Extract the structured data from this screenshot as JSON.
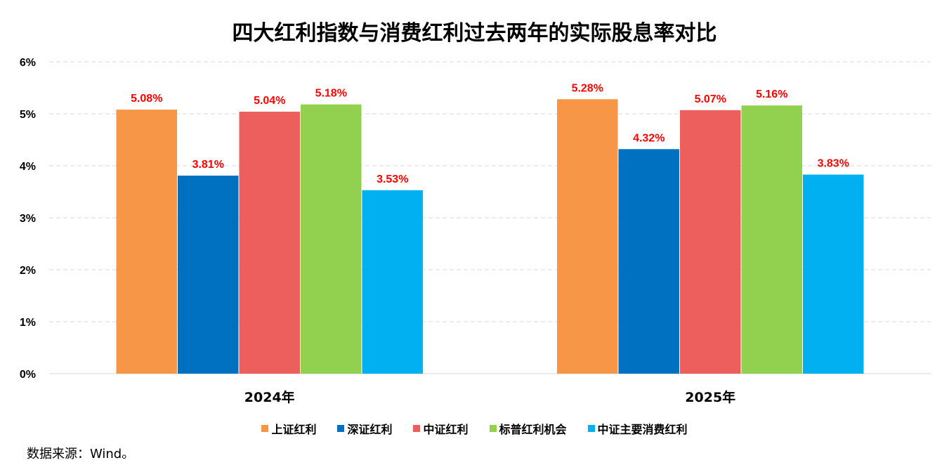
{
  "chart_data": {
    "type": "bar",
    "title": "四大红利指数与消费红利过去两年的实际股息率对比",
    "categories": [
      "2024年",
      "2025年"
    ],
    "series": [
      {
        "name": "上证红利",
        "color": "#F79646",
        "values": [
          5.08,
          5.28
        ],
        "labels": [
          "5.08%",
          "5.28%"
        ]
      },
      {
        "name": "深证红利",
        "color": "#0070C0",
        "values": [
          3.81,
          4.32
        ],
        "labels": [
          "3.81%",
          "4.32%"
        ]
      },
      {
        "name": "中证红利",
        "color": "#EC5F5C",
        "values": [
          5.04,
          5.07
        ],
        "labels": [
          "5.04%",
          "5.07%"
        ]
      },
      {
        "name": "标普红利机会",
        "color": "#92D050",
        "values": [
          5.18,
          5.16
        ],
        "labels": [
          "5.18%",
          "5.16%"
        ]
      },
      {
        "name": "中证主要消费红利",
        "color": "#00B0F0",
        "values": [
          3.53,
          3.83
        ],
        "labels": [
          "3.53%",
          "3.83%"
        ]
      }
    ],
    "yticks": [
      "0%",
      "1%",
      "2%",
      "3%",
      "4%",
      "5%",
      "6%"
    ],
    "ylim": [
      0,
      6
    ],
    "xlabel": "",
    "ylabel": "",
    "grid": true,
    "legend": "bottom",
    "label_color": "#FF0000"
  },
  "source": "数据来源：Wind。"
}
